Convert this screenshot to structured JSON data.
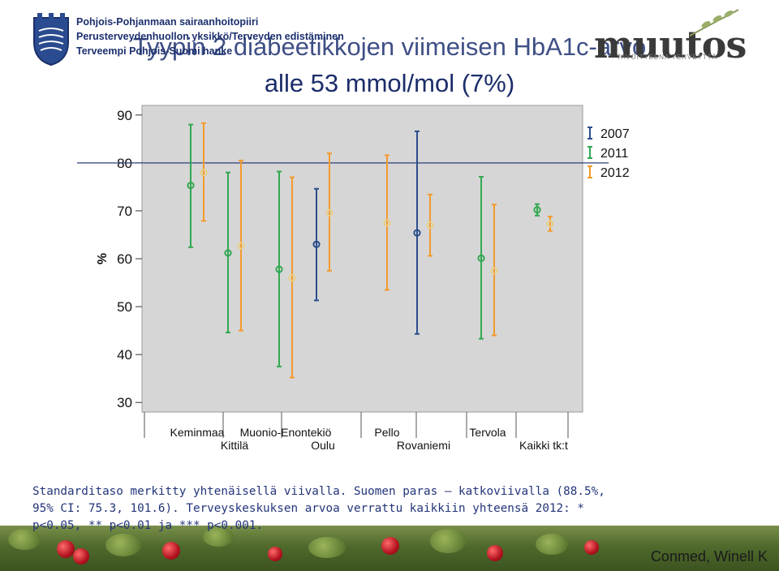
{
  "header": {
    "org_lines": [
      "Pohjois-Pohjanmaan sairaanhoitopiiri",
      "Perusterveydenhuollon yksikkö/Terveyden edistäminen",
      "Terveempi Pohjois-Suomi hanke"
    ],
    "title_line1": "Tyypin 2 diabeetikkojen viimeisen HbA1c-arvo",
    "title_line2": "alle 53 mmol/mol (7%)",
    "logo_text": "muutos",
    "logo_subtitle": "TAVOITTEENA TERVEYTTÄ"
  },
  "caption": {
    "line1": "Standarditaso merkitty yhtenäisellä viivalla. Suomen paras – katkoviivalla (88.5%,",
    "line2": "95% CI: 75.3, 101.6). Terveyskeskuksen arvoa verrattu kaikkiin yhteensä 2012: *",
    "line3": "p<0.05, ** p<0.01 ja *** p<0.001."
  },
  "credit": "Conmed, Winell K",
  "chart_data": {
    "type": "scatter",
    "subtype": "error-bar",
    "ylabel": "%",
    "ylim": [
      28,
      92
    ],
    "yticks": [
      30,
      40,
      50,
      60,
      70,
      80,
      90
    ],
    "standard_line": 80,
    "grid": false,
    "legend_placement": "top-right",
    "series": [
      {
        "name": "2007",
        "color": "#2b4e8c"
      },
      {
        "name": "2011",
        "color": "#33a852"
      },
      {
        "name": "2012",
        "color": "#f39a2c"
      }
    ],
    "categories": [
      "Keminmaa",
      "Kittilä",
      "Muonio-Enontekiö",
      "Oulu",
      "Pello",
      "Rovaniemi",
      "Tervola",
      "Kaikki tk:t"
    ],
    "points": [
      {
        "category": "Keminmaa",
        "year": "2011",
        "mean": 75.3,
        "low": 62.4,
        "high": 88.0,
        "color": "#33a852"
      },
      {
        "category": "Keminmaa",
        "year": "2012",
        "mean": 78.0,
        "low": 67.9,
        "high": 88.3,
        "color": "#f39a2c"
      },
      {
        "category": "Kittilä",
        "year": "2011",
        "mean": 61.2,
        "low": 44.6,
        "high": 78.0,
        "color": "#33a852"
      },
      {
        "category": "Kittilä",
        "year": "2012",
        "mean": 62.7,
        "low": 45.0,
        "high": 80.5,
        "color": "#f39a2c"
      },
      {
        "category": "Muonio-Enontekiö",
        "year": "2011",
        "mean": 57.8,
        "low": 37.5,
        "high": 78.2,
        "color": "#33a852"
      },
      {
        "category": "Muonio-Enontekiö",
        "year": "2012",
        "mean": 56.0,
        "low": 35.2,
        "high": 77.0,
        "color": "#f39a2c"
      },
      {
        "category": "Oulu",
        "year": "2007",
        "mean": 63.0,
        "low": 51.3,
        "high": 74.6,
        "color": "#2b4e8c"
      },
      {
        "category": "Oulu",
        "year": "2012",
        "mean": 69.6,
        "low": 57.5,
        "high": 82.0,
        "color": "#f39a2c"
      },
      {
        "category": "Pello",
        "year": "2012",
        "mean": 67.5,
        "low": 53.5,
        "high": 81.6,
        "color": "#f39a2c"
      },
      {
        "category": "Rovaniemi",
        "year": "2007",
        "mean": 65.4,
        "low": 44.3,
        "high": 86.6,
        "color": "#2b4e8c"
      },
      {
        "category": "Rovaniemi",
        "year": "2012",
        "mean": 67.0,
        "low": 60.6,
        "high": 73.4,
        "color": "#f39a2c"
      },
      {
        "category": "Tervola",
        "year": "2011",
        "mean": 60.1,
        "low": 43.3,
        "high": 77.1,
        "color": "#33a852"
      },
      {
        "category": "Tervola",
        "year": "2012",
        "mean": 57.5,
        "low": 44.0,
        "high": 71.3,
        "color": "#f39a2c"
      },
      {
        "category": "Kaikki tk:t",
        "year": "2011",
        "mean": 70.2,
        "low": 69.0,
        "high": 71.4,
        "color": "#33a852"
      },
      {
        "category": "Kaikki tk:t",
        "year": "2012",
        "mean": 67.3,
        "low": 65.8,
        "high": 68.8,
        "color": "#f39a2c"
      }
    ]
  }
}
